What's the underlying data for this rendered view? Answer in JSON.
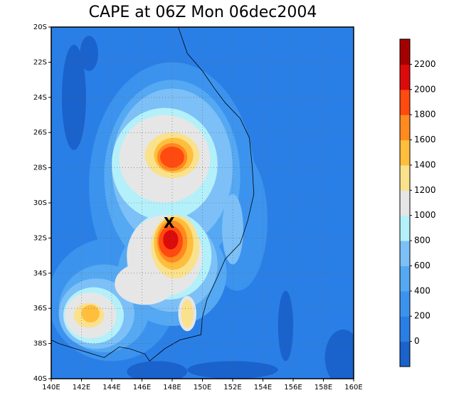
{
  "map": {
    "title": "CAPE at 06Z Mon 06dec2004",
    "xlim": [
      140,
      160
    ],
    "ylim": [
      -40,
      -20
    ],
    "xticks": [
      {
        "value": 140,
        "label": "140E"
      },
      {
        "value": 142,
        "label": "142E"
      },
      {
        "value": 144,
        "label": "144E"
      },
      {
        "value": 146,
        "label": "146E"
      },
      {
        "value": 148,
        "label": "148E"
      },
      {
        "value": 150,
        "label": "150E"
      },
      {
        "value": 152,
        "label": "152E"
      },
      {
        "value": 154,
        "label": "154E"
      },
      {
        "value": 156,
        "label": "156E"
      },
      {
        "value": 158,
        "label": "158E"
      },
      {
        "value": 160,
        "label": "160E"
      }
    ],
    "yticks": [
      {
        "value": -20,
        "label": "20S"
      },
      {
        "value": -22,
        "label": "22S"
      },
      {
        "value": -24,
        "label": "24S"
      },
      {
        "value": -26,
        "label": "26S"
      },
      {
        "value": -28,
        "label": "28S"
      },
      {
        "value": -30,
        "label": "30S"
      },
      {
        "value": -32,
        "label": "32S"
      },
      {
        "value": -34,
        "label": "34S"
      },
      {
        "value": -36,
        "label": "36S"
      },
      {
        "value": -38,
        "label": "38S"
      },
      {
        "value": -40,
        "label": "40S"
      }
    ],
    "grid": true,
    "colorbar": {
      "levels": [
        0,
        200,
        400,
        600,
        800,
        1000,
        1200,
        1400,
        1600,
        1800,
        2000,
        2200
      ],
      "colors": [
        "#1a62cc",
        "#2a7fe6",
        "#3c93ee",
        "#55a8f2",
        "#7cc0f7",
        "#b4f0fa",
        "#e6e6e6",
        "#fae18c",
        "#ffbe3c",
        "#ff8a20",
        "#ff4a10",
        "#dc0a0a",
        "#a50000"
      ]
    },
    "marker": {
      "label": "X",
      "lon": 147.8,
      "lat": -31.2
    }
  }
}
